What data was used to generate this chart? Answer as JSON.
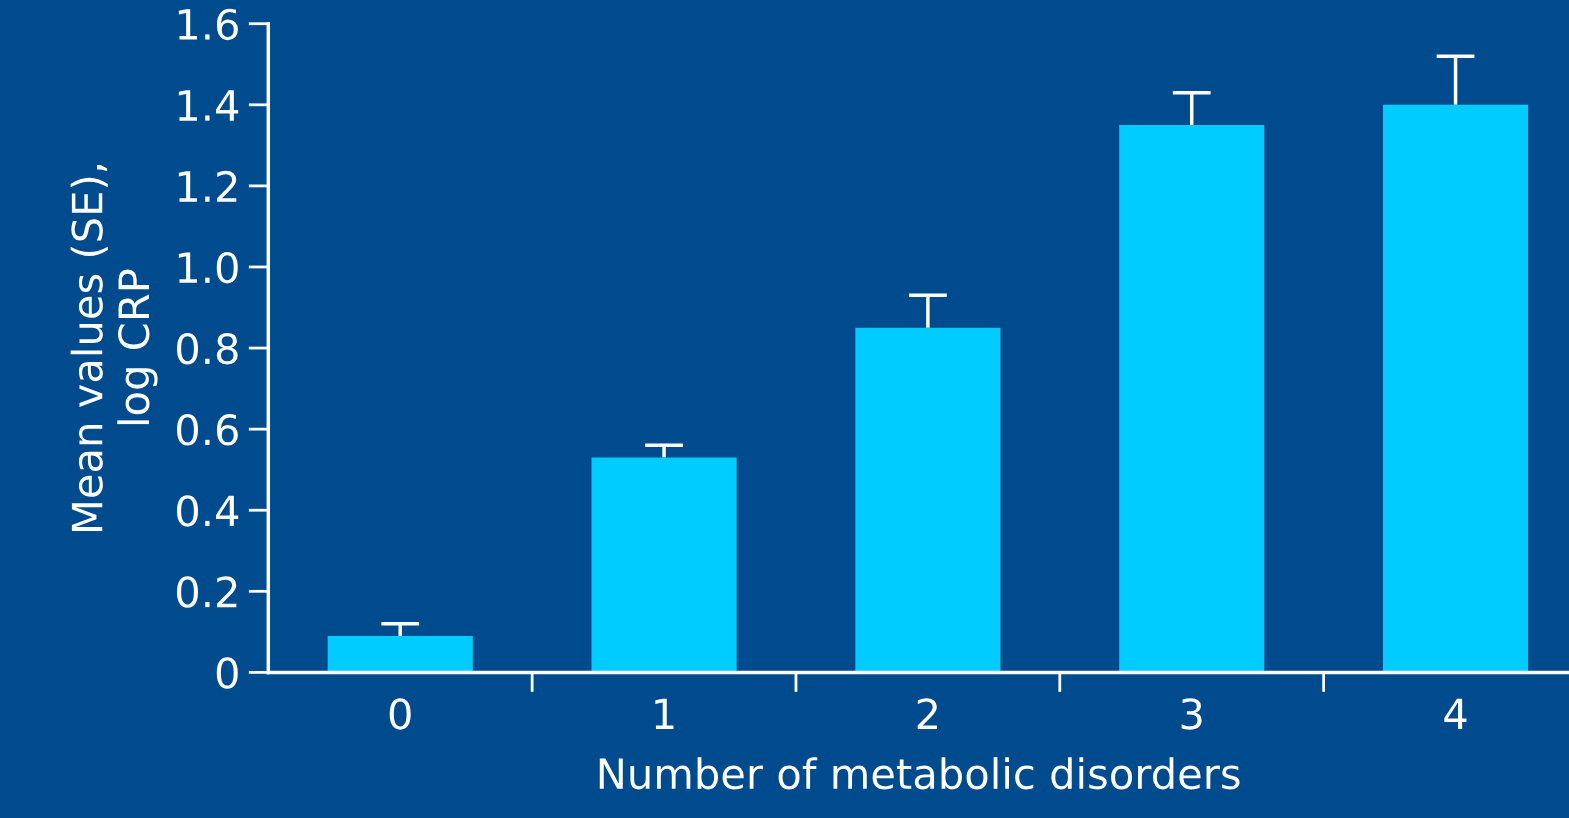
{
  "chart_data": {
    "type": "bar",
    "xlabel": "Number of metabolic disorders",
    "ylabel": "Mean values (SE),\nlog CRP",
    "categories": [
      "0",
      "1",
      "2",
      "3",
      "4"
    ],
    "values": [
      0.09,
      0.53,
      0.85,
      1.35,
      1.4
    ],
    "errors": [
      [
        0.09,
        0.12
      ],
      [
        0.53,
        0.56
      ],
      [
        0.85,
        0.93
      ],
      [
        1.35,
        1.43
      ],
      [
        1.4,
        1.52
      ]
    ],
    "color": "#00ccff",
    "ylim": [
      0,
      1.6
    ],
    "yticks": [
      {
        "value": 0,
        "label": "0"
      },
      0.2,
      0.4,
      0.6,
      0.8,
      {
        "value": 1.0,
        "label": "1.0"
      },
      1.2,
      1.4,
      1.6
    ],
    "grid": false,
    "legend": false
  }
}
